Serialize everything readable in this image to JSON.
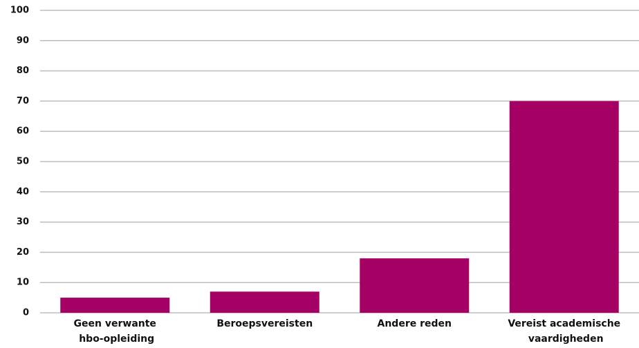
{
  "chart_data": {
    "type": "bar",
    "categories": [
      "Geen verwante hbo-opleiding",
      "Beroepsvereisten",
      "Andere reden",
      "Vereist academische vaardigheden"
    ],
    "values": [
      5,
      7,
      18,
      70
    ],
    "color": "#a50064",
    "ylim": [
      0,
      100
    ],
    "yticks": [
      0,
      10,
      20,
      30,
      40,
      50,
      60,
      70,
      80,
      90,
      100
    ],
    "grid": true
  }
}
